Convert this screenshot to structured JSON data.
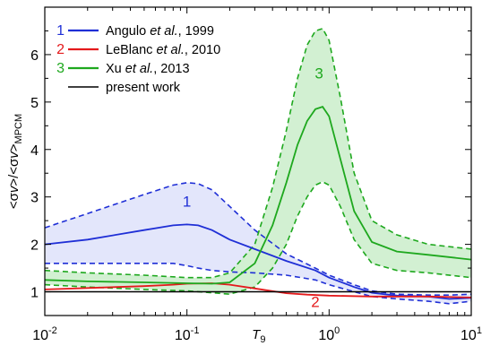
{
  "chart_data": {
    "type": "line",
    "xscale": "log",
    "xlim": [
      0.01,
      10
    ],
    "ylim": [
      0.5,
      7
    ],
    "xlabel": "T9",
    "ylabel": "<σv>/<σv>MPCM",
    "x_ticks": [
      {
        "value": 0.01,
        "base": "10",
        "exp": "-2"
      },
      {
        "value": 0.1,
        "base": "10",
        "exp": "-1"
      },
      {
        "value": 1,
        "base": "10",
        "exp": "0"
      },
      {
        "value": 10,
        "base": "10",
        "exp": "1"
      }
    ],
    "y_ticks": [
      1,
      2,
      3,
      4,
      5,
      6
    ],
    "grid": false,
    "legend_position": "top-left",
    "legend": [
      {
        "number": "1",
        "name_pre": "Angulo ",
        "name_ital": "et al.",
        "name_post": ", 1999",
        "color": "#1f2fd6"
      },
      {
        "number": "2",
        "name_pre": "LeBlanc ",
        "name_ital": "et al.",
        "name_post": ", 2010",
        "color": "#e41a1c"
      },
      {
        "number": "3",
        "name_pre": "Xu ",
        "name_ital": "et al.",
        "name_post": ", 2013",
        "color": "#1ea81e"
      },
      {
        "number": "",
        "name_pre": "present work",
        "name_ital": "",
        "name_post": "",
        "color": "#000000"
      }
    ],
    "annotations": [
      {
        "text": "1",
        "x": 0.1,
        "y": 2.8,
        "color": "#1f2fd6"
      },
      {
        "text": "2",
        "x": 0.8,
        "y": 0.68,
        "color": "#e41a1c"
      },
      {
        "text": "3",
        "x": 0.85,
        "y": 5.5,
        "color": "#1ea81e"
      }
    ],
    "series": [
      {
        "name": "Angulo et al., 1999",
        "color": "#1f2fd6",
        "fill": "#e3e6fb",
        "x": [
          0.01,
          0.02,
          0.05,
          0.08,
          0.1,
          0.12,
          0.15,
          0.2,
          0.3,
          0.5,
          0.8,
          1,
          1.5,
          2,
          3,
          5,
          7,
          10
        ],
        "y": [
          2.0,
          2.1,
          2.3,
          2.4,
          2.42,
          2.4,
          2.3,
          2.1,
          1.9,
          1.65,
          1.45,
          1.3,
          1.1,
          0.98,
          0.92,
          0.9,
          0.85,
          0.87
        ],
        "upper": [
          2.35,
          2.65,
          3.05,
          3.25,
          3.3,
          3.28,
          3.15,
          2.8,
          2.3,
          1.8,
          1.5,
          1.35,
          1.15,
          1.02,
          0.95,
          0.93,
          0.93,
          0.95
        ],
        "lower": [
          1.6,
          1.6,
          1.6,
          1.6,
          1.55,
          1.5,
          1.45,
          1.42,
          1.4,
          1.35,
          1.25,
          1.15,
          1.0,
          0.9,
          0.85,
          0.8,
          0.75,
          0.8
        ]
      },
      {
        "name": "LeBlanc et al., 2010",
        "color": "#e41a1c",
        "x": [
          0.01,
          0.02,
          0.05,
          0.08,
          0.1,
          0.15,
          0.2,
          0.3,
          0.5,
          0.7,
          1,
          2,
          3,
          5,
          10
        ],
        "y": [
          1.05,
          1.08,
          1.12,
          1.15,
          1.17,
          1.18,
          1.15,
          1.07,
          0.97,
          0.94,
          0.92,
          0.9,
          0.9,
          0.9,
          0.88
        ]
      },
      {
        "name": "Xu et al., 2013",
        "color": "#1ea81e",
        "fill": "#d2f0d2",
        "x": [
          0.01,
          0.02,
          0.05,
          0.1,
          0.15,
          0.2,
          0.3,
          0.4,
          0.5,
          0.6,
          0.7,
          0.8,
          0.9,
          1.0,
          1.2,
          1.5,
          2,
          3,
          5,
          10
        ],
        "y": [
          1.25,
          1.22,
          1.2,
          1.18,
          1.17,
          1.2,
          1.6,
          2.4,
          3.3,
          4.1,
          4.6,
          4.85,
          4.9,
          4.7,
          3.8,
          2.7,
          2.05,
          1.85,
          1.78,
          1.68
        ],
        "upper": [
          1.45,
          1.4,
          1.35,
          1.3,
          1.3,
          1.4,
          2.0,
          3.2,
          4.4,
          5.5,
          6.2,
          6.5,
          6.55,
          6.3,
          5.1,
          3.5,
          2.5,
          2.2,
          2.0,
          1.9
        ],
        "lower": [
          1.15,
          1.1,
          1.05,
          1.02,
          0.98,
          0.95,
          1.1,
          1.5,
          2.0,
          2.6,
          3.0,
          3.25,
          3.32,
          3.25,
          2.8,
          2.1,
          1.6,
          1.45,
          1.4,
          1.3
        ]
      },
      {
        "name": "present work",
        "color": "#000000",
        "x": [
          0.01,
          10
        ],
        "y": [
          1.0,
          1.0
        ]
      }
    ]
  }
}
